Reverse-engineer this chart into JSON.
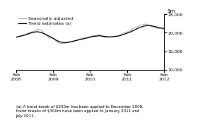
{
  "title": "",
  "ylim": [
    10000,
    25000
  ],
  "yticks": [
    10000,
    15000,
    20000,
    25000
  ],
  "xtick_labels": [
    "Feb\n2008",
    "Feb\n2009",
    "Feb\n2010",
    "Feb\n2011",
    "Feb\n2012"
  ],
  "xtick_positions": [
    0,
    12,
    24,
    36,
    48
  ],
  "trend_color": "#000000",
  "seasonal_color": "#aaaaaa",
  "legend_labels": [
    "Trend estimates (a)",
    "Seasonally adjusted"
  ],
  "footnote": "(a) A trend break of $200m has been applied to December 2008,\ntrend breaks of $300m have been applied to January 2011 and\nJuly 2011.",
  "trend_values": [
    18800,
    19000,
    19200,
    19400,
    19700,
    20000,
    20200,
    20300,
    20100,
    19800,
    19400,
    19000,
    18500,
    18000,
    17600,
    17400,
    17300,
    17400,
    17600,
    17800,
    18000,
    18200,
    18400,
    18600,
    18800,
    19000,
    19100,
    19200,
    19100,
    19000,
    18900,
    18900,
    19000,
    19100,
    19300,
    19600,
    19900,
    20200,
    20600,
    21000,
    21400,
    21700,
    21900,
    22000,
    21900,
    21700,
    21500,
    21300,
    21200
  ],
  "seasonal_values": [
    18900,
    19000,
    19300,
    19500,
    20000,
    20200,
    20500,
    21000,
    20800,
    20000,
    19200,
    18500,
    18800,
    17700,
    17200,
    17100,
    17200,
    17600,
    17500,
    17900,
    18100,
    18400,
    18600,
    18700,
    19000,
    19200,
    19300,
    19500,
    18900,
    18700,
    18800,
    18800,
    19100,
    19000,
    19500,
    20000,
    20200,
    20600,
    21200,
    21500,
    22000,
    22200,
    22400,
    22100,
    21600,
    21400,
    21200,
    21100,
    21000
  ]
}
